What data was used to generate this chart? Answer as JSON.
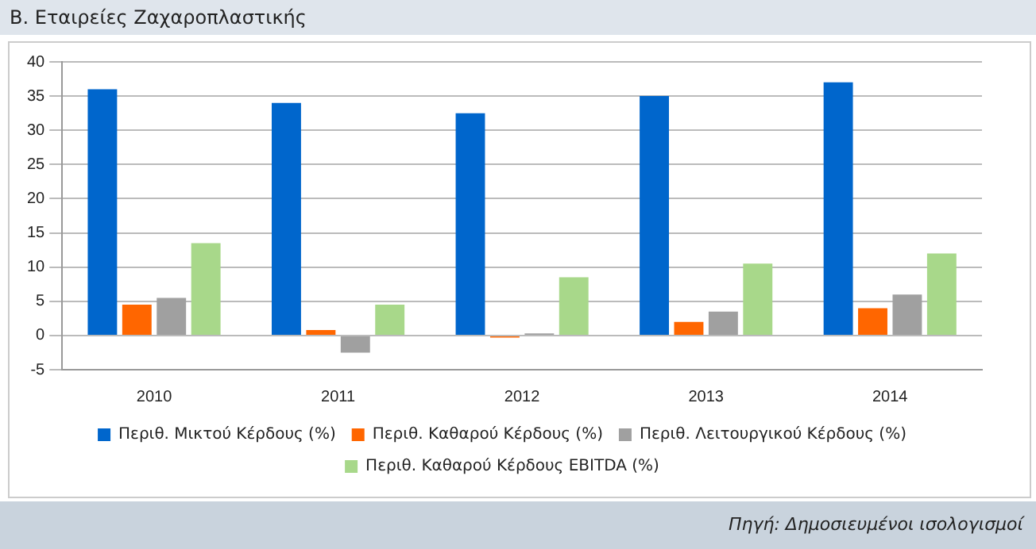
{
  "chart_data": {
    "type": "bar",
    "title": "Β. Εταιρείες Ζαχαροπλαστικής",
    "categories": [
      "2010",
      "2011",
      "2012",
      "2013",
      "2014"
    ],
    "series": [
      {
        "name": "Περιθ. Μικτού Κέρδους (%)",
        "color": "#0066cc",
        "values": [
          36,
          34,
          32.5,
          35,
          37
        ]
      },
      {
        "name": "Περιθ. Καθαρού Κέρδους (%)",
        "color": "#ff6600",
        "values": [
          4.5,
          0.8,
          -0.3,
          2,
          4
        ]
      },
      {
        "name": "Περιθ. Λειτουργικού Κέρδους (%)",
        "color": "#a0a0a0",
        "values": [
          5.5,
          -2.5,
          0.3,
          3.5,
          6
        ]
      },
      {
        "name": "Περιθ. Καθαρού Κέρδους EBITDA (%)",
        "color": "#a8d88a",
        "values": [
          13.5,
          4.5,
          8.5,
          10.5,
          12
        ]
      }
    ],
    "ylim": [
      -5,
      40
    ],
    "yticks": [
      -5,
      0,
      5,
      10,
      15,
      20,
      25,
      30,
      35,
      40
    ],
    "grid": "y",
    "legend": "bottom",
    "annotations": [
      "Πηγή: Δημοσιευμένοι ισολογισμοί"
    ]
  }
}
